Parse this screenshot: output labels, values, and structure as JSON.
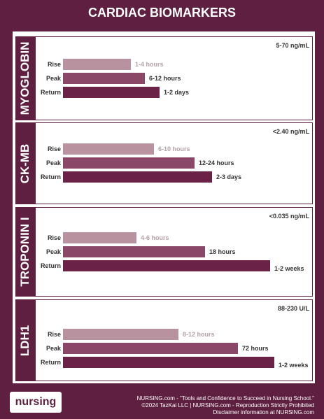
{
  "header": {
    "title": "CARDIAC BIOMARKERS"
  },
  "sections": [
    {
      "name": "MYOGLOBIN",
      "range": "5-70 ng/mL",
      "rows": [
        {
          "label": "Rise",
          "duration": "1-4 hours"
        },
        {
          "label": "Peak",
          "duration": "6-12 hours"
        },
        {
          "label": "Return",
          "duration": "1-2 days"
        }
      ]
    },
    {
      "name": "CK-MB",
      "range": "<2.40 ng/mL",
      "rows": [
        {
          "label": "Rise",
          "duration": "6-10 hours"
        },
        {
          "label": "Peak",
          "duration": "12-24 hours"
        },
        {
          "label": "Return",
          "duration": "2-3 days"
        }
      ]
    },
    {
      "name": "TROPONIN I",
      "range": "<0.035 ng/mL",
      "rows": [
        {
          "label": "Rise",
          "duration": "4-6 hours"
        },
        {
          "label": "Peak",
          "duration": "18 hours"
        },
        {
          "label": "Return",
          "duration": "1-2 weeks"
        }
      ]
    },
    {
      "name": "LDH1",
      "range": "88-230 U/L",
      "rows": [
        {
          "label": "Rise",
          "duration": "8-12 hours"
        },
        {
          "label": "Peak",
          "duration": "72 hours"
        },
        {
          "label": "Return",
          "duration": "1-2 weeks"
        }
      ]
    }
  ],
  "footer": {
    "logo": "nursing",
    "lines": [
      "NURSING.com - \"Tools and Confidence to Succeed in Nursing School.\"",
      "©2024 TazKai LLC | NURSING.com - Reproduction Strictly Prohibited",
      "Disclaimer information at NURSING.com"
    ]
  }
}
